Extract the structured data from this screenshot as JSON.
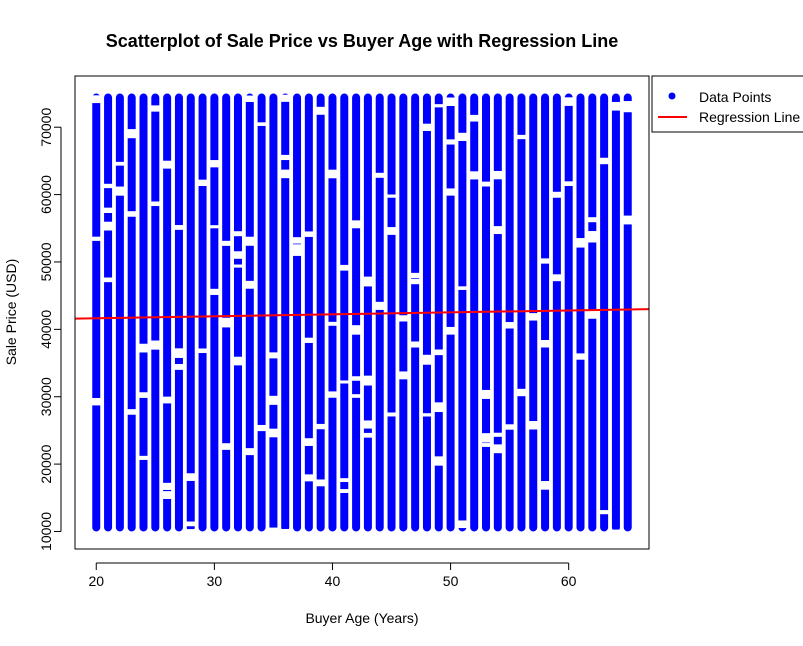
{
  "chart_data": {
    "type": "scatter",
    "title": "Scatterplot of Sale Price vs Buyer Age with Regression Line",
    "xlabel": "Buyer Age (Years)",
    "ylabel": "Sale Price (USD)",
    "xlim": [
      18.2,
      66.8
    ],
    "ylim": [
      7400,
      77600
    ],
    "xticks": [
      20,
      30,
      40,
      50,
      60
    ],
    "yticks": [
      10000,
      20000,
      30000,
      40000,
      50000,
      60000,
      70000
    ],
    "x_range": [
      20,
      65
    ],
    "y_range": [
      10000,
      75000
    ],
    "series": [
      {
        "name": "Data Points",
        "color": "#0000ff",
        "marker": "filled-circle",
        "pattern": "dense vertical columns at each integer age 20–65 spanning sale prices 10000–75000"
      },
      {
        "name": "Regression Line",
        "color": "#ff0000",
        "type": "line",
        "x": [
          18.2,
          66.8
        ],
        "y": [
          41600,
          43000
        ]
      }
    ],
    "legend": {
      "position": "top-right",
      "entries": [
        "Data Points",
        "Regression Line"
      ]
    },
    "grid": false
  }
}
